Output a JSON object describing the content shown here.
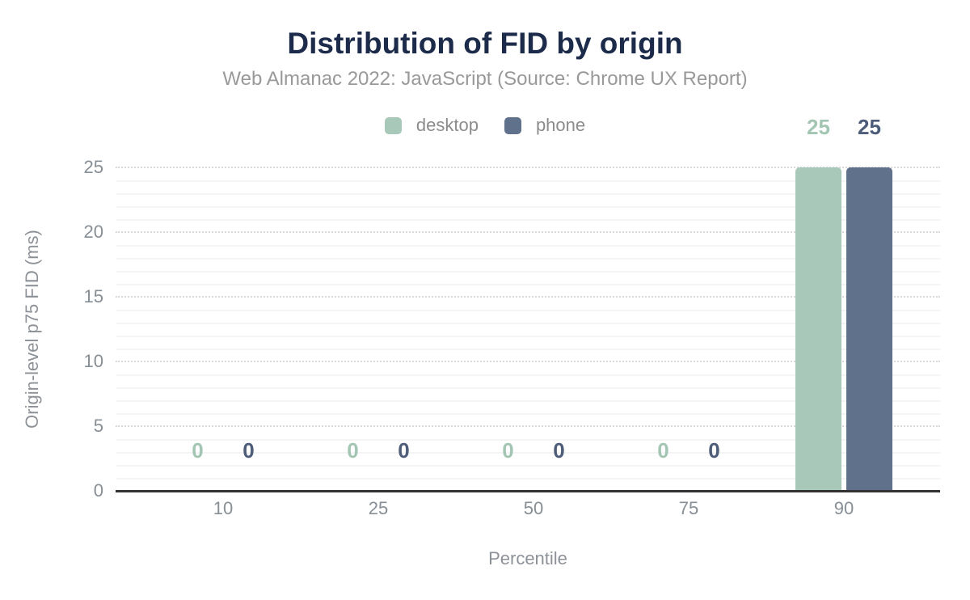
{
  "chart_data": {
    "type": "bar",
    "title": "Distribution of FID by origin",
    "subtitle": "Web Almanac 2022: JavaScript (Source: Chrome UX Report)",
    "categories": [
      "10",
      "25",
      "50",
      "75",
      "90"
    ],
    "series": [
      {
        "name": "desktop",
        "color": "#a8c9ba",
        "label_color": "#a3c6b3",
        "values": [
          0,
          0,
          0,
          0,
          25
        ]
      },
      {
        "name": "phone",
        "color": "#60718c",
        "label_color": "#4d5d79",
        "values": [
          0,
          0,
          0,
          0,
          25
        ]
      }
    ],
    "xlabel": "Percentile",
    "ylabel": "Origin-level p75 FID (ms)",
    "ylim": [
      0,
      25
    ],
    "yticks": [
      0,
      5,
      10,
      15,
      20,
      25
    ],
    "grid": {
      "major_step": 5,
      "minor_step": 1,
      "major_style": "dotted",
      "minor_style": "solid"
    },
    "legend_position": "top"
  },
  "colors": {
    "title_text": "#1c2b4a",
    "subtitle_text": "#999999",
    "legend_text": "#8c8c8c",
    "tick_text": "#868e96",
    "axis_title_text": "#8d9299",
    "axis_line": "#333333",
    "major_gridline": "#d9d9d9",
    "minor_gridline": "#f4f4f4",
    "background": "#ffffff"
  }
}
